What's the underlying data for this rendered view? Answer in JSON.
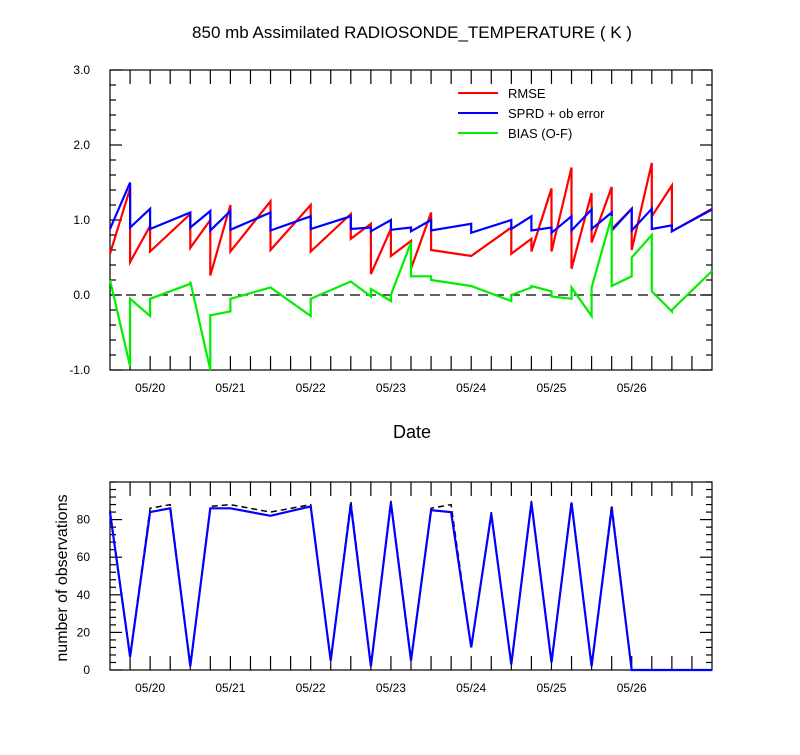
{
  "chart_data": [
    {
      "type": "line",
      "title": "850 mb Assimilated RADIOSONDE_TEMPERATURE ( K )",
      "xlabel": "Date",
      "ylabel": "",
      "xlim": [
        0,
        7.5
      ],
      "ylim": [
        -1.0,
        3.0
      ],
      "yticks": [
        -1.0,
        0.0,
        1.0,
        2.0,
        3.0
      ],
      "ytick_labels": [
        "-1.0",
        "0.0",
        "1.0",
        "2.0",
        "3.0"
      ],
      "xtick_positions": [
        0.5,
        1.5,
        2.5,
        3.5,
        4.5,
        5.5,
        6.5
      ],
      "xtick_labels": [
        "05/20",
        "05/21",
        "05/22",
        "05/23",
        "05/24",
        "05/25",
        "05/26"
      ],
      "zero_line": "dashed",
      "grid": false,
      "legend_position": "top-right",
      "colors": {
        "RMSE": "#ff0000",
        "SPRD + ob error": "#0000ff",
        "BIAS (O-F)": "#00ee00"
      },
      "series": [
        {
          "name": "RMSE",
          "color": "#ff0000",
          "x": [
            0.0,
            0.25,
            0.25,
            0.5,
            0.5,
            1.0,
            1.0,
            1.25,
            1.25,
            1.5,
            1.5,
            2.0,
            2.0,
            2.5,
            2.5,
            3.0,
            3.0,
            3.25,
            3.25,
            3.5,
            3.5,
            3.75,
            3.75,
            4.0,
            4.0,
            4.5,
            4.5,
            5.0,
            5.0,
            5.25,
            5.25,
            5.5,
            5.5,
            5.75,
            5.75,
            6.0,
            6.0,
            6.25,
            6.25,
            6.5,
            6.5,
            6.75,
            6.75,
            7.0,
            7.0,
            7.5
          ],
          "y": [
            0.55,
            1.42,
            0.44,
            0.92,
            0.58,
            1.08,
            0.63,
            1.0,
            0.26,
            1.2,
            0.58,
            1.25,
            0.6,
            1.2,
            0.58,
            1.08,
            0.75,
            0.95,
            0.28,
            0.88,
            0.52,
            0.72,
            0.35,
            1.1,
            0.6,
            0.52,
            0.52,
            0.9,
            0.55,
            0.75,
            0.58,
            1.42,
            0.58,
            1.7,
            0.35,
            1.36,
            0.7,
            1.44,
            0.88,
            1.15,
            0.6,
            1.76,
            1.05,
            1.46,
            0.85,
            1.15
          ]
        },
        {
          "name": "SPRD + ob error",
          "color": "#0000ff",
          "x": [
            0.0,
            0.25,
            0.25,
            0.5,
            0.5,
            1.0,
            1.0,
            1.25,
            1.25,
            1.5,
            1.5,
            2.0,
            2.0,
            2.5,
            2.5,
            3.0,
            3.0,
            3.25,
            3.25,
            3.5,
            3.5,
            3.75,
            3.75,
            4.0,
            4.0,
            4.5,
            4.5,
            5.0,
            5.0,
            5.25,
            5.25,
            5.5,
            5.5,
            5.75,
            5.75,
            6.0,
            6.0,
            6.25,
            6.25,
            6.5,
            6.5,
            6.75,
            6.75,
            7.0,
            7.0,
            7.5
          ],
          "y": [
            0.88,
            1.5,
            0.9,
            1.15,
            0.88,
            1.1,
            0.9,
            1.12,
            0.86,
            1.12,
            0.87,
            1.1,
            0.86,
            1.05,
            0.88,
            1.05,
            0.88,
            0.9,
            0.85,
            1.0,
            0.87,
            0.9,
            0.85,
            1.0,
            0.86,
            0.95,
            0.83,
            1.0,
            0.88,
            1.05,
            0.86,
            0.9,
            0.83,
            1.05,
            0.86,
            1.14,
            0.88,
            1.1,
            0.86,
            1.15,
            0.86,
            1.15,
            0.88,
            0.93,
            0.85,
            1.14
          ]
        },
        {
          "name": "BIAS (O-F)",
          "color": "#00ee00",
          "x": [
            0.0,
            0.25,
            0.25,
            0.5,
            0.5,
            1.0,
            1.0,
            1.25,
            1.25,
            1.5,
            1.5,
            2.0,
            2.0,
            2.5,
            2.5,
            3.0,
            3.0,
            3.25,
            3.25,
            3.5,
            3.5,
            3.75,
            3.75,
            4.0,
            4.0,
            4.5,
            4.5,
            5.0,
            5.0,
            5.25,
            5.25,
            5.5,
            5.5,
            5.75,
            5.75,
            6.0,
            6.0,
            6.25,
            6.25,
            6.5,
            6.5,
            6.75,
            6.75,
            7.0,
            7.0,
            7.5
          ],
          "y": [
            0.2,
            -0.95,
            -0.05,
            -0.28,
            -0.05,
            0.15,
            0.18,
            -1.0,
            -0.27,
            -0.22,
            -0.05,
            0.1,
            0.1,
            -0.28,
            -0.05,
            0.18,
            0.18,
            -0.02,
            0.08,
            -0.08,
            0.0,
            0.7,
            0.25,
            0.25,
            0.2,
            0.12,
            0.12,
            -0.08,
            0.0,
            0.1,
            0.12,
            0.05,
            -0.02,
            -0.05,
            0.1,
            -0.28,
            0.1,
            1.05,
            0.12,
            0.25,
            0.5,
            0.8,
            0.05,
            -0.22,
            -0.2,
            0.32
          ]
        }
      ]
    },
    {
      "type": "line",
      "title": "",
      "xlabel": "",
      "ylabel": "number of observations",
      "xlim": [
        0,
        7.5
      ],
      "ylim": [
        0,
        100
      ],
      "yticks": [
        0,
        20,
        40,
        60,
        80
      ],
      "ytick_labels": [
        "0",
        "20",
        "40",
        "60",
        "80"
      ],
      "xtick_positions": [
        0.5,
        1.5,
        2.5,
        3.5,
        4.5,
        5.5,
        6.5
      ],
      "xtick_labels": [
        "05/20",
        "05/21",
        "05/22",
        "05/23",
        "05/24",
        "05/25",
        "05/26"
      ],
      "grid": false,
      "series": [
        {
          "color": "#000000",
          "style": "dashed",
          "x": [
            0.0,
            0.25,
            0.5,
            0.75,
            1.0,
            1.25,
            1.5,
            2.0,
            2.5,
            2.75,
            3.0,
            3.25,
            3.5,
            3.75,
            4.0,
            4.25,
            4.5,
            4.75,
            5.0,
            5.25,
            5.5,
            5.75,
            6.0,
            6.25,
            6.5,
            6.75,
            7.0,
            7.25,
            7.5
          ],
          "y": [
            85,
            8,
            86,
            88,
            2,
            87,
            88,
            84,
            88,
            5,
            90,
            2,
            90,
            6,
            86,
            88,
            12,
            84,
            3,
            90,
            4,
            90,
            2,
            88,
            0,
            0,
            0,
            0,
            0
          ]
        },
        {
          "color": "#0000ff",
          "style": "solid",
          "x": [
            0.0,
            0.25,
            0.5,
            0.75,
            1.0,
            1.25,
            1.5,
            2.0,
            2.5,
            2.75,
            3.0,
            3.25,
            3.5,
            3.75,
            4.0,
            4.25,
            4.5,
            4.75,
            5.0,
            5.25,
            5.5,
            5.75,
            6.0,
            6.25,
            6.5,
            6.75,
            7.0,
            7.25,
            7.5
          ],
          "y": [
            84,
            7,
            84,
            86,
            2,
            86,
            86,
            82,
            87,
            5,
            88,
            2,
            89,
            5,
            85,
            84,
            12,
            83,
            3,
            89,
            4,
            89,
            2,
            86,
            0,
            0,
            0,
            0,
            0
          ]
        }
      ]
    }
  ]
}
